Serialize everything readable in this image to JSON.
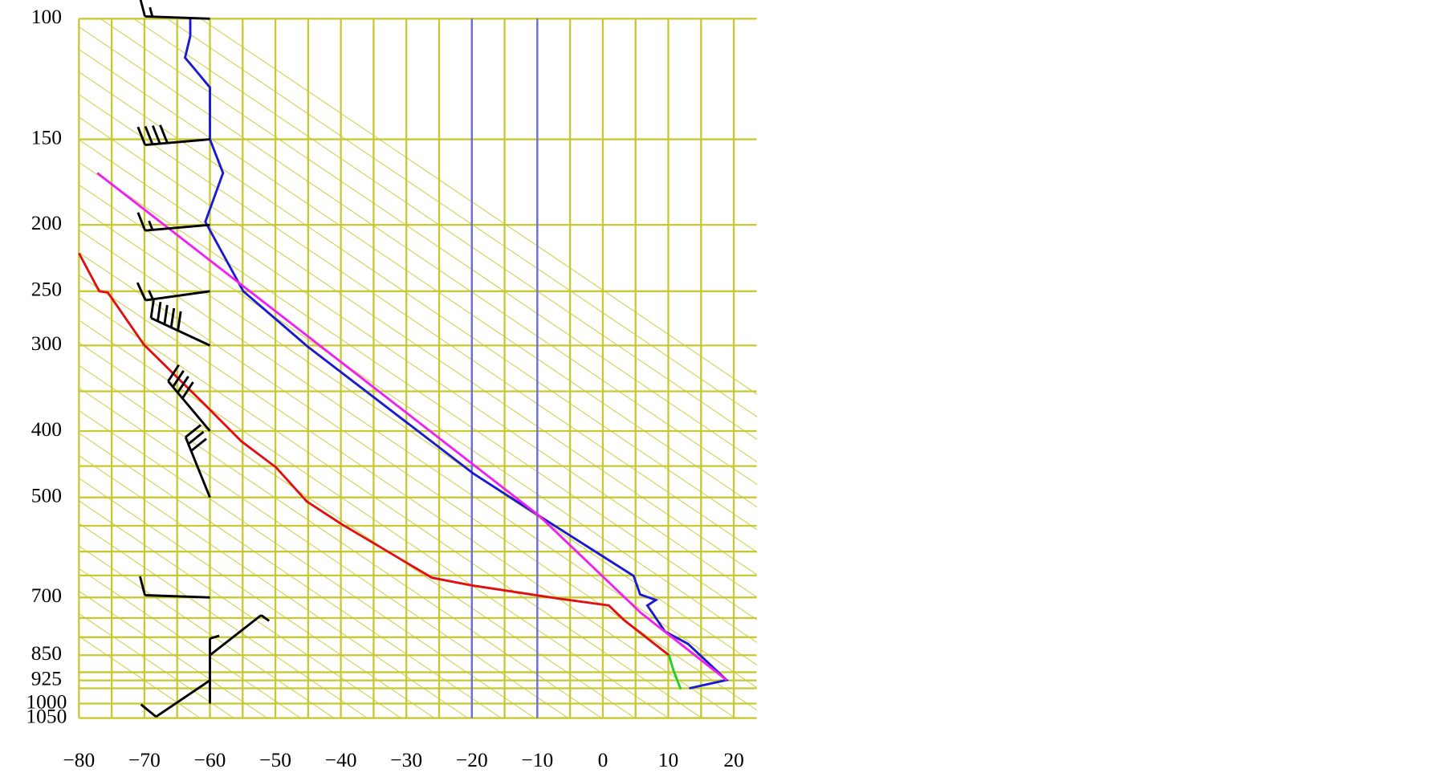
{
  "chart_data": {
    "type": "skewt",
    "yscale": "log",
    "ylim": [
      100,
      1050
    ],
    "xlim": [
      -80,
      23.5
    ],
    "yticks": [
      100,
      150,
      200,
      250,
      300,
      400,
      500,
      700,
      850,
      925,
      1000,
      1050
    ],
    "ygrid": [
      100,
      150,
      200,
      250,
      300,
      350,
      400,
      450,
      500,
      550,
      600,
      650,
      700,
      750,
      800,
      850,
      900,
      925,
      950,
      1000,
      1050
    ],
    "xticks": [
      {
        "value": -80,
        "label": "−80"
      },
      {
        "value": -70,
        "label": "−70"
      },
      {
        "value": -60,
        "label": "−60"
      },
      {
        "value": -50,
        "label": "−50"
      },
      {
        "value": -40,
        "label": "−40"
      },
      {
        "value": -30,
        "label": "−30"
      },
      {
        "value": -20,
        "label": "−20"
      },
      {
        "value": -10,
        "label": "−10"
      },
      0,
      10,
      20
    ],
    "xgrid": [
      -80,
      -75,
      -70,
      -65,
      -60,
      -55,
      -50,
      -45,
      -40,
      -35,
      -30,
      -25,
      -20,
      -15,
      -10,
      -5,
      0,
      5,
      10,
      15,
      20
    ],
    "grid_color": "#c8c832",
    "highlight_isotherms": [
      -20,
      -10
    ],
    "highlight_color": "#6a6ae0",
    "series": [
      {
        "color": "#1a1ad0",
        "x": [
          -63.0,
          -63.0,
          -63.8,
          -62.8,
          -60.0,
          -60.0,
          -58.0,
          -60.7,
          -54.9,
          -45.1,
          -19.7,
          -9.6,
          4.7,
          5.7,
          8.1,
          6.8,
          9.5,
          13.0,
          18.9,
          13.2
        ],
        "y": [
          100,
          106,
          114,
          117,
          126,
          150,
          168,
          198,
          250,
          301,
          462,
          533,
          651,
          693,
          706,
          719,
          785,
          818,
          924,
          950
        ]
      },
      {
        "color": "#e01010",
        "x": [
          -80.0,
          -76.9,
          -75.6,
          -70.1,
          -60.9,
          -55.2,
          -49.9,
          -45.2,
          -39.9,
          -26.1,
          -20.1,
          -7.0,
          0.9,
          3.3,
          10.1
        ],
        "y": [
          220,
          250,
          251,
          299,
          365,
          414,
          452,
          507,
          547,
          655,
          672,
          702,
          719,
          756,
          850
        ]
      },
      {
        "color": "#20d020",
        "x": [
          10.1,
          10.8,
          11.9
        ],
        "y": [
          850,
          895,
          953
        ]
      },
      {
        "color": "#f020f0",
        "x": [
          -77.2,
          -9.8,
          5.8,
          18.9
        ],
        "y": [
          168,
          531,
          737,
          924
        ]
      }
    ],
    "wind_x": -60,
    "winds": [
      {
        "pressure": 100,
        "direction": 272,
        "speed": 15
      },
      {
        "pressure": 150,
        "direction": 265,
        "speed": 40
      },
      {
        "pressure": 200,
        "direction": 265,
        "speed": 15
      },
      {
        "pressure": 250,
        "direction": 262,
        "speed": 15
      },
      {
        "pressure": 300,
        "direction": 295,
        "speed": 50
      },
      {
        "pressure": 400,
        "direction": 320,
        "speed": 40
      },
      {
        "pressure": 500,
        "direction": 338,
        "speed": 30
      },
      {
        "pressure": 700,
        "direction": 272,
        "speed": 10
      },
      {
        "pressure": 850,
        "direction": 52,
        "speed": 5
      },
      {
        "pressure": 925,
        "direction": 236,
        "speed": 10
      },
      {
        "pressure": 1000,
        "direction": 360,
        "speed": 5
      }
    ]
  }
}
